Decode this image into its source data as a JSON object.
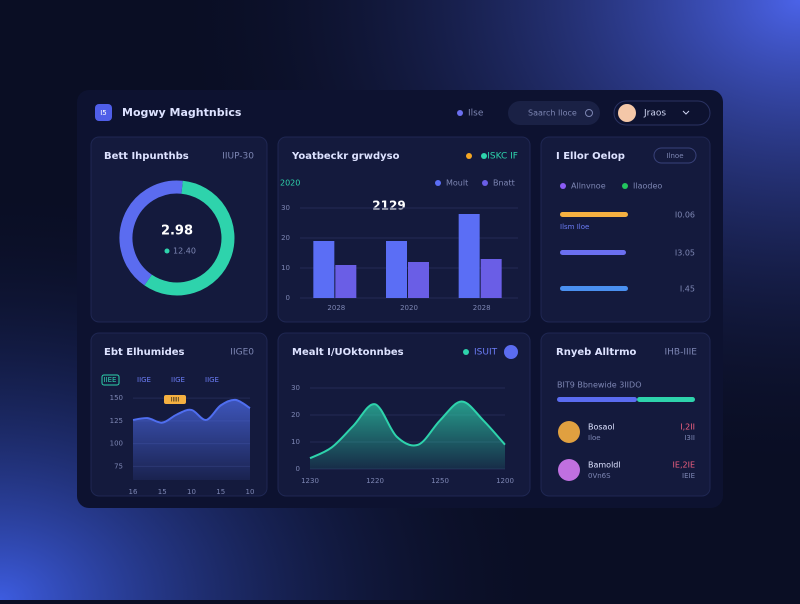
{
  "header": {
    "logo": "I5",
    "title": "Mogwy Maghtnbics",
    "status": "Ilse",
    "search": "Saarch Iloce",
    "user": "Jraos"
  },
  "donut_card": {
    "title": "Bett Ihpunthbs",
    "badge": "IIUP-30",
    "center_value": "2.98",
    "center_note": "12.40",
    "segments": [
      {
        "value": 58,
        "color": "#2ed3ac"
      },
      {
        "value": 42,
        "color": "#5b6cf0"
      }
    ]
  },
  "bar_card": {
    "title": "Yoatbeckr grwdyso",
    "badge": "ISKC IF",
    "subtitle": "2020",
    "annotation": "2129",
    "chart_data": {
      "type": "bar",
      "categories": [
        "2028",
        "2020",
        "2028"
      ],
      "series": [
        {
          "name": "Moult",
          "color": "#5b6ef5",
          "values": [
            19,
            19,
            28
          ]
        },
        {
          "name": "Bnatt",
          "color": "#6a5ee6",
          "values": [
            11,
            12,
            13
          ]
        }
      ],
      "ylim": [
        0,
        30
      ],
      "yticks": [
        0,
        10,
        20,
        30
      ],
      "grid": true
    }
  },
  "progress_card": {
    "title": "I Ellor Oelop",
    "button": "Ilnoe",
    "legend": [
      {
        "label": "Allnvnoe",
        "color": "#8b5cf6"
      },
      {
        "label": "Ilaodeo",
        "color": "#22c55e"
      }
    ],
    "rows": [
      {
        "note": "Ilsm Iloe",
        "value": "I0.06"
      },
      {
        "note": "",
        "value": "I3.05"
      },
      {
        "note": "",
        "value": "I.45"
      }
    ]
  },
  "line_card": {
    "title": "Ebt Elhumides",
    "badge": "IIGE0",
    "tabs": [
      "IIEE",
      "IIGE",
      "IIGE",
      "IIGE"
    ],
    "tooltip": "IIIII",
    "chart_data": {
      "type": "area",
      "categories": [
        "16",
        null,
        "15",
        null,
        "10",
        null,
        "15",
        null,
        "10"
      ],
      "values": [
        126,
        128,
        123,
        132,
        137,
        126,
        142,
        148,
        139
      ],
      "color": "#4f6ef0",
      "ylim": [
        60,
        160
      ],
      "yticks": [
        75,
        100,
        125,
        150
      ],
      "grid": true
    }
  },
  "area_card": {
    "title": "Mealt I/UOktonnbes",
    "badge": "ISUIT",
    "chart_data": {
      "type": "area",
      "categories": [
        "1230",
        null,
        null,
        "1220",
        null,
        null,
        "1250",
        null,
        null,
        "1200"
      ],
      "values": [
        4,
        8,
        16,
        24,
        12,
        9,
        18,
        25,
        18,
        9
      ],
      "color": "#2ed3ac",
      "ylim": [
        0,
        30
      ],
      "yticks": [
        0,
        10,
        20,
        30
      ],
      "grid": true
    }
  },
  "team_card": {
    "title": "Rnyeb Alltrmo",
    "badge": "IHB-IIIE",
    "subtitle": "BIT9 Bbnewide 3IIDO",
    "people": [
      {
        "name": "Bosaol",
        "note": "Iloe",
        "amount": "I,2II",
        "sub": "I3II"
      },
      {
        "name": "Bamoldl",
        "note": "0Vn6S",
        "amount": "IE,2IE",
        "sub": "IEIE"
      }
    ]
  }
}
